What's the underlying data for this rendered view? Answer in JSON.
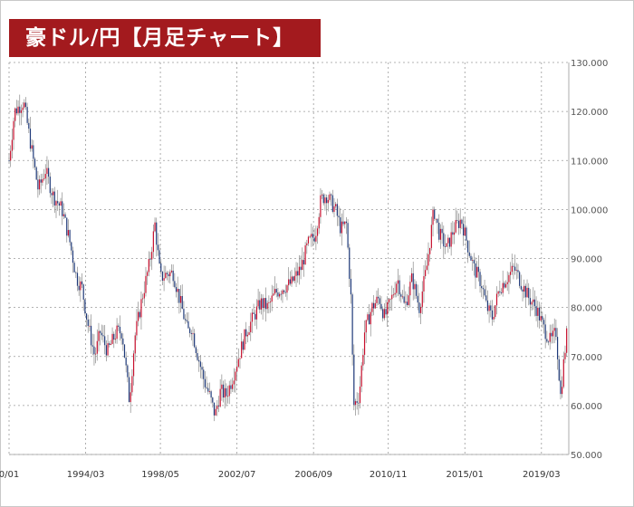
{
  "title": "豪ドル/円【月足チャート】",
  "colors": {
    "banner": "#a31a1e",
    "up_candle": "#c8102e",
    "down_candle": "#1f3a7a",
    "wick": "#8a8a8a",
    "grid": "#9a9a9a"
  },
  "chart_data": {
    "type": "candlestick",
    "title": "豪ドル/円【月足チャート】",
    "xlabel": "",
    "ylabel": "",
    "ylim": [
      50,
      130
    ],
    "grid": true,
    "legend": "none",
    "y_ticks": [
      {
        "value": 130,
        "label": "130.000"
      },
      {
        "value": 120,
        "label": "120.000"
      },
      {
        "value": 110,
        "label": "110.000"
      },
      {
        "value": 100,
        "label": "100.000"
      },
      {
        "value": 90,
        "label": "90.000"
      },
      {
        "value": 80,
        "label": "80.000"
      },
      {
        "value": 70,
        "label": "70.000"
      },
      {
        "value": 60,
        "label": "60.000"
      },
      {
        "value": 50,
        "label": "50.000"
      }
    ],
    "x_ticks": [
      {
        "value": 1990.0,
        "label": "0/01"
      },
      {
        "value": 1994.2,
        "label": "1994/03"
      },
      {
        "value": 1998.3,
        "label": "1998/05"
      },
      {
        "value": 2002.5,
        "label": "2002/07"
      },
      {
        "value": 2006.7,
        "label": "2006/09"
      },
      {
        "value": 2010.8,
        "label": "2010/11"
      },
      {
        "value": 2015.0,
        "label": "2015/01"
      },
      {
        "value": 2019.2,
        "label": "2019/03"
      }
    ],
    "xlim": [
      1990.0,
      2020.7
    ],
    "anchors": [
      [
        1990.0,
        110
      ],
      [
        1990.3,
        120
      ],
      [
        1990.8,
        122
      ],
      [
        1991.2,
        113
      ],
      [
        1991.6,
        104
      ],
      [
        1992.0,
        108
      ],
      [
        1992.4,
        103
      ],
      [
        1992.9,
        100
      ],
      [
        1993.3,
        94
      ],
      [
        1993.7,
        86
      ],
      [
        1994.0,
        84
      ],
      [
        1994.3,
        77
      ],
      [
        1994.7,
        70
      ],
      [
        1995.0,
        75
      ],
      [
        1995.4,
        71
      ],
      [
        1995.9,
        75
      ],
      [
        1996.2,
        75
      ],
      [
        1996.6,
        61
      ],
      [
        1996.9,
        74
      ],
      [
        1997.3,
        82
      ],
      [
        1997.7,
        89
      ],
      [
        1998.0,
        97
      ],
      [
        1998.3,
        86
      ],
      [
        1998.7,
        87
      ],
      [
        1999.0,
        87
      ],
      [
        1999.4,
        81
      ],
      [
        1999.8,
        75
      ],
      [
        2000.0,
        76
      ],
      [
        2000.3,
        71
      ],
      [
        2000.7,
        65
      ],
      [
        2001.0,
        62
      ],
      [
        2001.3,
        58
      ],
      [
        2001.6,
        63
      ],
      [
        2001.9,
        62
      ],
      [
        2002.2,
        65
      ],
      [
        2002.6,
        70
      ],
      [
        2003.0,
        75
      ],
      [
        2003.4,
        78
      ],
      [
        2003.8,
        81
      ],
      [
        2004.2,
        80
      ],
      [
        2004.6,
        83
      ],
      [
        2005.0,
        84
      ],
      [
        2005.5,
        85
      ],
      [
        2006.0,
        88
      ],
      [
        2006.4,
        93
      ],
      [
        2006.8,
        95
      ],
      [
        2007.1,
        102
      ],
      [
        2007.4,
        103
      ],
      [
        2007.9,
        100
      ],
      [
        2008.2,
        96
      ],
      [
        2008.5,
        97
      ],
      [
        2008.75,
        82
      ],
      [
        2008.9,
        60
      ],
      [
        2009.2,
        62
      ],
      [
        2009.5,
        75
      ],
      [
        2009.9,
        80
      ],
      [
        2010.3,
        82
      ],
      [
        2010.6,
        78
      ],
      [
        2011.0,
        82
      ],
      [
        2011.3,
        86
      ],
      [
        2011.7,
        80
      ],
      [
        2012.1,
        86
      ],
      [
        2012.5,
        80
      ],
      [
        2012.9,
        88
      ],
      [
        2013.3,
        100
      ],
      [
        2013.6,
        95
      ],
      [
        2014.0,
        92
      ],
      [
        2014.4,
        96
      ],
      [
        2014.8,
        98
      ],
      [
        2015.2,
        92
      ],
      [
        2015.5,
        88
      ],
      [
        2015.9,
        85
      ],
      [
        2016.2,
        80
      ],
      [
        2016.5,
        78
      ],
      [
        2016.9,
        84
      ],
      [
        2017.3,
        86
      ],
      [
        2017.7,
        88
      ],
      [
        2018.1,
        85
      ],
      [
        2018.5,
        82
      ],
      [
        2018.9,
        80
      ],
      [
        2019.3,
        76
      ],
      [
        2019.7,
        73
      ],
      [
        2020.0,
        75
      ],
      [
        2020.25,
        62
      ],
      [
        2020.4,
        68
      ],
      [
        2020.6,
        75
      ]
    ]
  }
}
